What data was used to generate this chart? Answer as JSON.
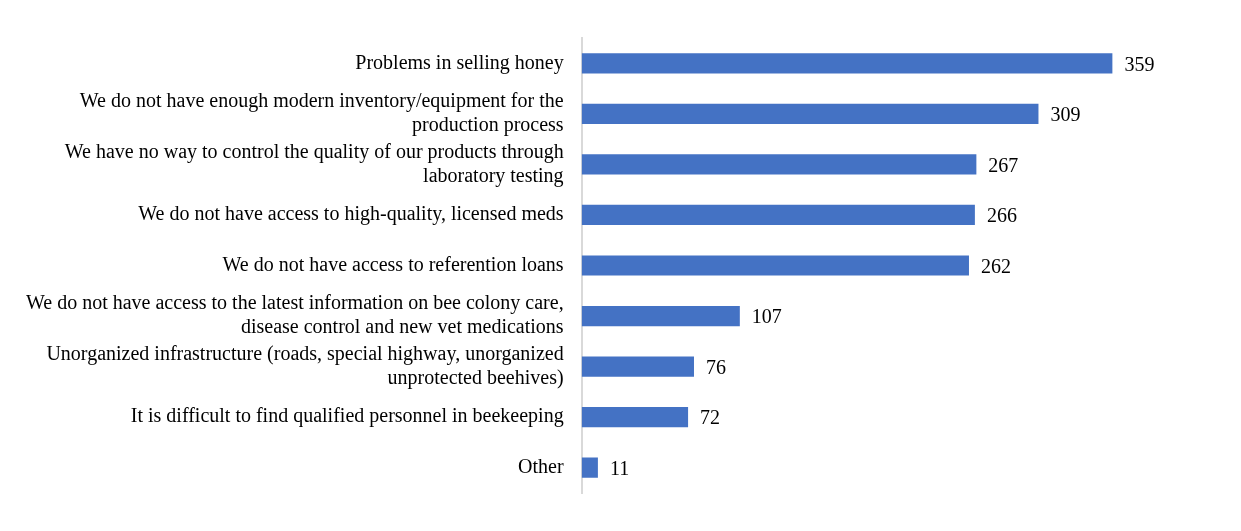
{
  "chart_data": {
    "type": "bar",
    "orientation": "horizontal",
    "data_labels": true,
    "categories": [
      "Problems in selling honey",
      "We do not have enough modern inventory/equipment for the production process",
      "We have no way to control the quality of our products through laboratory testing",
      "We do not have access to high-quality, licensed meds",
      "We do not have access to referention loans",
      "We do not have access to the latest information on bee colony care, disease control and new vet medications",
      "Unorganized infrastructure (roads, special highway, unorganized unprotected beehives)",
      "It is difficult to find qualified personnel in beekeeping",
      "Other"
    ],
    "values": [
      359,
      309,
      267,
      266,
      262,
      107,
      76,
      72,
      11
    ],
    "color": "#4472c4"
  }
}
